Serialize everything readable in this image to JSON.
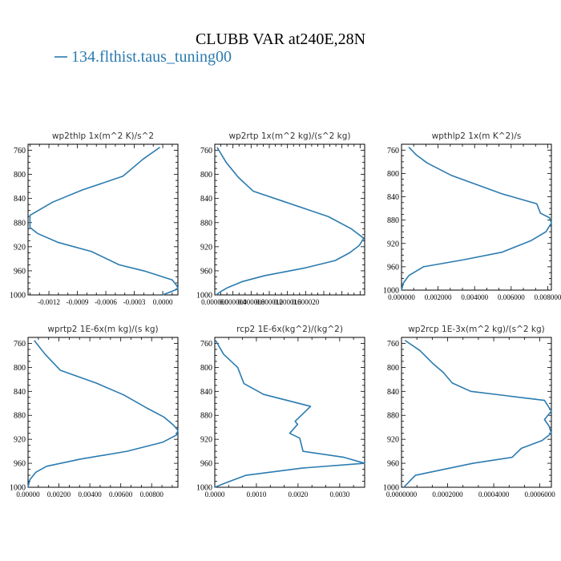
{
  "title": "CLUBB VAR at240E,28N",
  "legend": {
    "label": "134.flthist.taus_tuning00",
    "color": "#2b7bb0"
  },
  "chart_data": [
    {
      "type": "line",
      "title": "wp2thlp  1x(m^2 K)/s^2",
      "xlim": [
        -0.00142,
        0.00016
      ],
      "xticks": [
        -0.0012,
        -0.0009,
        -0.0006,
        -0.0003,
        0.0
      ],
      "xtick_labels": [
        "-0.0012",
        "-0.0009",
        "-0.0006",
        "-0.0003",
        "0.0000"
      ],
      "ylim": [
        1000,
        750
      ],
      "yticks": [
        760,
        800,
        840,
        880,
        920,
        960,
        1000
      ],
      "series": [
        {
          "x": [
            -3e-05,
            -0.00021,
            -0.00042,
            -0.00085,
            -0.00116,
            -0.0014,
            -0.0014,
            -0.00132,
            -0.0011,
            -0.00075,
            -0.00046,
            -0.0002,
            0.0001,
            0.00015,
            0.00016,
            8e-05,
            0.0
          ],
          "y": [
            755,
            775,
            803,
            826,
            846,
            868,
            888,
            898,
            913,
            928,
            950,
            960,
            975,
            985,
            990,
            995,
            1000
          ]
        }
      ]
    },
    {
      "type": "line",
      "title": "wp2rtp  1x(m^2 kg)/(s^2 kg)",
      "xlim": [
        0.0,
        3.3e-05
      ],
      "xticks": [
        0.0,
        4e-06,
        8e-06,
        1.2e-05,
        1.6e-05,
        2e-05
      ],
      "xtick_labels": [
        "0.000000",
        "0.000004",
        "0.000008",
        "0.000012",
        "0.000016",
        "0.000020"
      ],
      "ylim": [
        1000,
        750
      ],
      "yticks": [
        760,
        800,
        840,
        880,
        920,
        960,
        1000
      ],
      "series": [
        {
          "x": [
            5e-07,
            2.5e-06,
            5.2e-06,
            8.5e-06,
            1.52e-05,
            2.5e-05,
            3e-05,
            3.28e-05,
            3.18e-05,
            2.97e-05,
            2.65e-05,
            2e-05,
            1.1e-05,
            6e-06,
            2.8e-06,
            1.2e-06,
            3e-07
          ],
          "y": [
            755,
            780,
            805,
            828,
            845,
            870,
            890,
            906,
            918,
            930,
            943,
            955,
            968,
            978,
            988,
            995,
            1000
          ]
        }
      ]
    },
    {
      "type": "line",
      "title": "wpthlp2  1x(m K^2)/s",
      "xlim": [
        0.0,
        0.0082
      ],
      "xticks": [
        0.0,
        0.002,
        0.004,
        0.006,
        0.008
      ],
      "xtick_labels": [
        "0.000000",
        "0.002000",
        "0.004000",
        "0.006000",
        "0.008000"
      ],
      "ylim": [
        1000,
        750
      ],
      "yticks": [
        760,
        800,
        840,
        880,
        920,
        960,
        1000
      ],
      "series": [
        {
          "x": [
            0.0004,
            0.0008,
            0.0014,
            0.0027,
            0.0055,
            0.0074,
            0.0076,
            0.0081,
            0.0082,
            0.0079,
            0.0071,
            0.0055,
            0.0034,
            0.0012,
            0.0004,
            0.0001,
            0.0
          ],
          "y": [
            755,
            768,
            782,
            803,
            835,
            852,
            868,
            876,
            885,
            900,
            915,
            935,
            948,
            960,
            975,
            988,
            1000
          ]
        }
      ]
    },
    {
      "type": "line",
      "title": "wprtp2  1E-6x(m kg)/(s kg)",
      "xlim": [
        0.0,
        0.0097
      ],
      "xticks": [
        0.0,
        0.002,
        0.004,
        0.006,
        0.008
      ],
      "xtick_labels": [
        "0.00000",
        "0.00200",
        "0.00400",
        "0.00600",
        "0.00800"
      ],
      "ylim": [
        1000,
        750
      ],
      "yticks": [
        760,
        800,
        840,
        880,
        920,
        960,
        1000
      ],
      "series": [
        {
          "x": [
            0.0004,
            0.0011,
            0.0021,
            0.0044,
            0.0062,
            0.0077,
            0.0088,
            0.0094,
            0.0097,
            0.0096,
            0.0087,
            0.0064,
            0.0034,
            0.0012,
            0.0005,
            0.0001,
            0.0
          ],
          "y": [
            755,
            778,
            805,
            826,
            846,
            868,
            883,
            896,
            905,
            913,
            925,
            940,
            953,
            965,
            975,
            988,
            1000
          ]
        }
      ]
    },
    {
      "type": "line",
      "title": "rcp2  1E-6x(kg^2)/(kg^2)",
      "xlim": [
        0.0,
        0.0036
      ],
      "xticks": [
        0.0,
        0.001,
        0.002,
        0.003
      ],
      "xtick_labels": [
        "0.0000",
        "0.0010",
        "0.0020",
        "0.0030"
      ],
      "ylim": [
        1000,
        750
      ],
      "yticks": [
        760,
        800,
        840,
        880,
        920,
        960,
        1000
      ],
      "series": [
        {
          "x": [
            2e-05,
            0.00021,
            0.00055,
            0.0007,
            0.00117,
            0.0023,
            0.00193,
            0.00199,
            0.0018,
            0.00204,
            0.00212,
            0.0031,
            0.0036,
            0.0021,
            0.00075,
            0.00025,
            0.0
          ],
          "y": [
            755,
            778,
            800,
            827,
            845,
            865,
            890,
            895,
            910,
            918,
            940,
            950,
            960,
            968,
            980,
            993,
            1000
          ]
        }
      ]
    },
    {
      "type": "line",
      "title": "wp2rcp  1E-3x(m^2 kg)/(s^2 kg)",
      "xlim": [
        0.0,
        0.00065
      ],
      "xticks": [
        0.0,
        0.0002,
        0.0004,
        0.0006
      ],
      "xtick_labels": [
        "0.0000000",
        "0.0002000",
        "0.0004000",
        "0.0006000"
      ],
      "ylim": [
        1000,
        750
      ],
      "yticks": [
        760,
        800,
        840,
        880,
        920,
        960,
        1000
      ],
      "series": [
        {
          "x": [
            1.5e-05,
            8e-05,
            0.00014,
            0.00018,
            0.00022,
            0.0003,
            0.00062,
            0.00065,
            0.00062,
            0.00064,
            0.00065,
            0.00061,
            0.00052,
            0.00048,
            0.00031,
            6e-05,
            1e-05
          ],
          "y": [
            755,
            772,
            795,
            808,
            826,
            840,
            855,
            873,
            887,
            898,
            910,
            922,
            935,
            950,
            960,
            980,
            1000
          ]
        }
      ]
    }
  ]
}
